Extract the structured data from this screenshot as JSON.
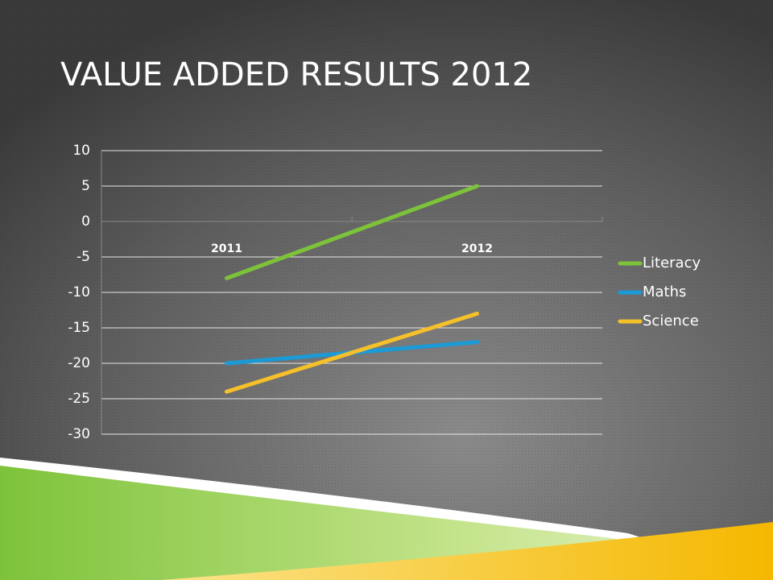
{
  "chart_data": {
    "type": "line",
    "title": "VALUE ADDED RESULTS 2012",
    "categories": [
      "2011",
      "2012"
    ],
    "series": [
      {
        "name": "Literacy",
        "color": "#7dc33a",
        "values": [
          -8,
          5
        ]
      },
      {
        "name": "Maths",
        "color": "#1c9ad6",
        "values": [
          -20,
          -17
        ]
      },
      {
        "name": "Science",
        "color": "#f5c02a",
        "values": [
          -24,
          -13
        ]
      }
    ],
    "ylim": [
      -30,
      10
    ],
    "yticks": [
      -30,
      -25,
      -20,
      -15,
      -10,
      -5,
      0,
      5,
      10
    ],
    "grid": true,
    "legend": "right"
  }
}
